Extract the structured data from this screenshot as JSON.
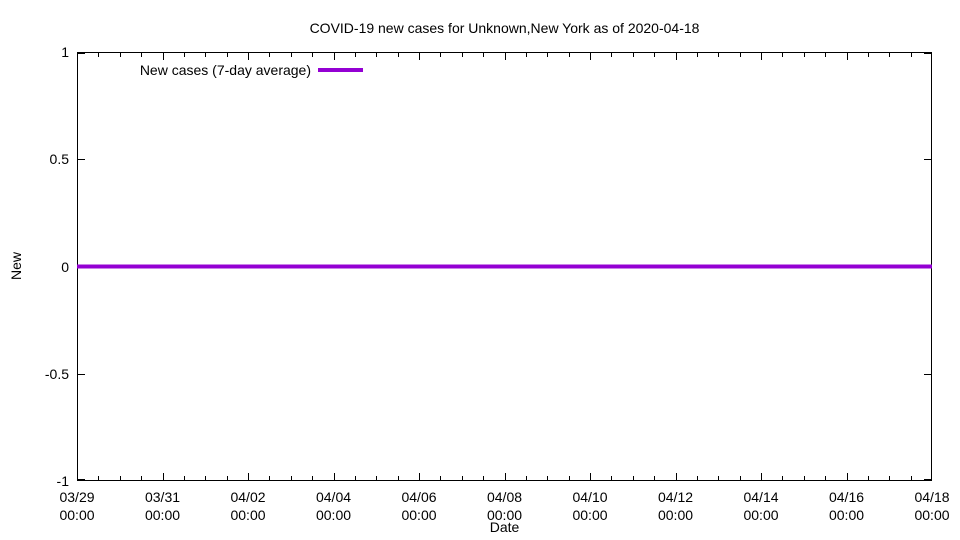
{
  "figure": {
    "background_color": "#ffffff",
    "axis_color": "#000000",
    "text_color": "#000000"
  },
  "chart_data": {
    "type": "line",
    "title": "COVID-19 new cases for Unknown,New York as of 2020-04-18",
    "xlabel": "Date",
    "ylabel": "New",
    "ylim": [
      -1,
      1
    ],
    "yticks": [
      1,
      0.5,
      0,
      -0.5,
      -1
    ],
    "ytick_labels": [
      "1",
      "0.5",
      "0",
      "-0.5",
      "-1"
    ],
    "xtick_labels": [
      [
        "03/29",
        "00:00"
      ],
      [
        "03/31",
        "00:00"
      ],
      [
        "04/02",
        "00:00"
      ],
      [
        "04/04",
        "00:00"
      ],
      [
        "04/06",
        "00:00"
      ],
      [
        "04/08",
        "00:00"
      ],
      [
        "04/10",
        "00:00"
      ],
      [
        "04/12",
        "00:00"
      ],
      [
        "04/14",
        "00:00"
      ],
      [
        "04/16",
        "00:00"
      ],
      [
        "04/18",
        "00:00"
      ]
    ],
    "minor_xticks_per_interval": 3,
    "grid": false,
    "legend_position": "top-left-inside",
    "series": [
      {
        "name": "New cases (7-day average)",
        "color": "#9400D3",
        "line_width": 4,
        "x": [
          "03/29",
          "03/30",
          "03/31",
          "04/01",
          "04/02",
          "04/03",
          "04/04",
          "04/05",
          "04/06",
          "04/07",
          "04/08",
          "04/09",
          "04/10",
          "04/11",
          "04/12",
          "04/13",
          "04/14",
          "04/15",
          "04/16",
          "04/17",
          "04/18"
        ],
        "values": [
          0,
          0,
          0,
          0,
          0,
          0,
          0,
          0,
          0,
          0,
          0,
          0,
          0,
          0,
          0,
          0,
          0,
          0,
          0,
          0,
          0
        ]
      }
    ]
  }
}
